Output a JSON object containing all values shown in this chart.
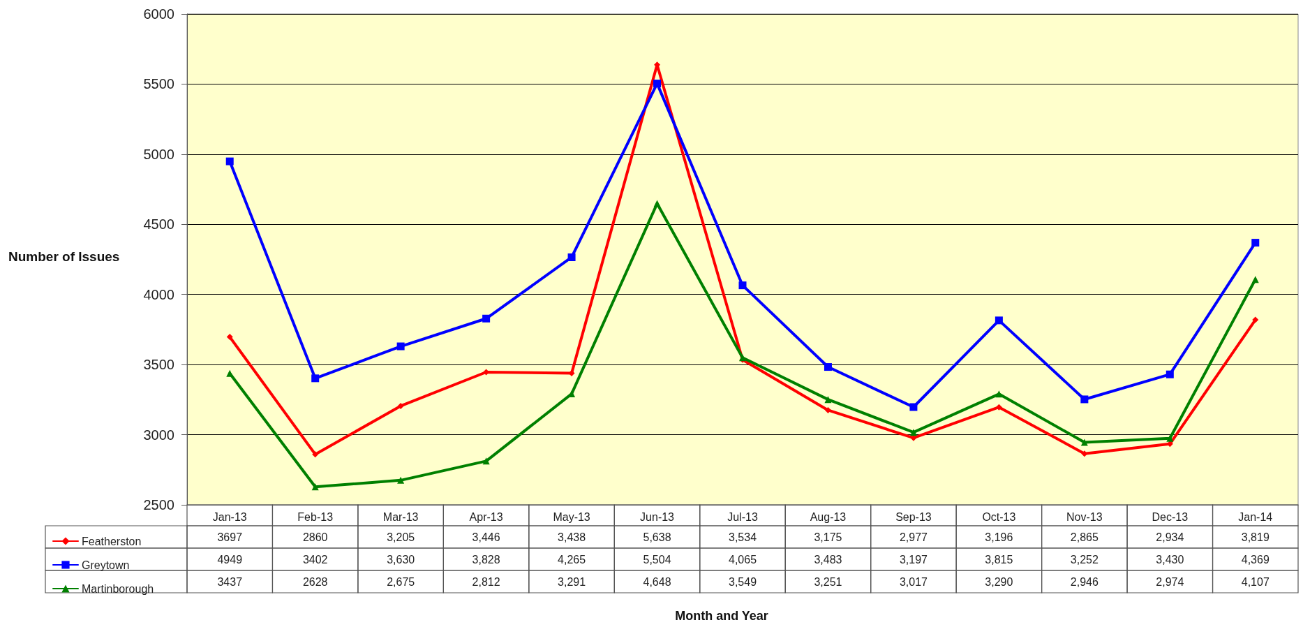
{
  "chart_data": {
    "type": "line",
    "ylabel": "Number of Issues",
    "annotations": [
      "Month and Year"
    ],
    "categories": [
      "Jan-13",
      "Feb-13",
      "Mar-13",
      "Apr-13",
      "May-13",
      "Jun-13",
      "Jul-13",
      "Aug-13",
      "Sep-13",
      "Oct-13",
      "Nov-13",
      "Dec-13",
      "Jan-14"
    ],
    "series": [
      {
        "name": "Featherston",
        "color": "#ff0000",
        "marker": "diamond",
        "values": [
          3697,
          2860,
          3205,
          3446,
          3438,
          5638,
          3534,
          3175,
          2977,
          3196,
          2865,
          2934,
          3819
        ],
        "value_labels": [
          "3697",
          "2860",
          "3,205",
          "3,446",
          "3,438",
          "5,638",
          "3,534",
          "3,175",
          "2,977",
          "3,196",
          "2,865",
          "2,934",
          "3,819"
        ]
      },
      {
        "name": "Greytown",
        "color": "#0000ff",
        "marker": "square",
        "values": [
          4949,
          3402,
          3630,
          3828,
          4265,
          5504,
          4065,
          3483,
          3197,
          3815,
          3252,
          3430,
          4369
        ],
        "value_labels": [
          "4949",
          "3402",
          "3,630",
          "3,828",
          "4,265",
          "5,504",
          "4,065",
          "3,483",
          "3,197",
          "3,815",
          "3,252",
          "3,430",
          "4,369"
        ]
      },
      {
        "name": "Martinborough",
        "color": "#008000",
        "marker": "triangle",
        "values": [
          3437,
          2628,
          2675,
          2812,
          3291,
          4648,
          3549,
          3251,
          3017,
          3290,
          2946,
          2974,
          4107
        ],
        "value_labels": [
          "3437",
          "2628",
          "2,675",
          "2,812",
          "3,291",
          "4,648",
          "3,549",
          "3,251",
          "3,017",
          "3,290",
          "2,946",
          "2,974",
          "4,107"
        ]
      }
    ],
    "ylim": [
      2500,
      6000
    ],
    "yticks": [
      2500,
      3000,
      3500,
      4000,
      4500,
      5000,
      5500,
      6000
    ],
    "grid": "y",
    "legend": "bottom left",
    "line_style": "solid"
  }
}
